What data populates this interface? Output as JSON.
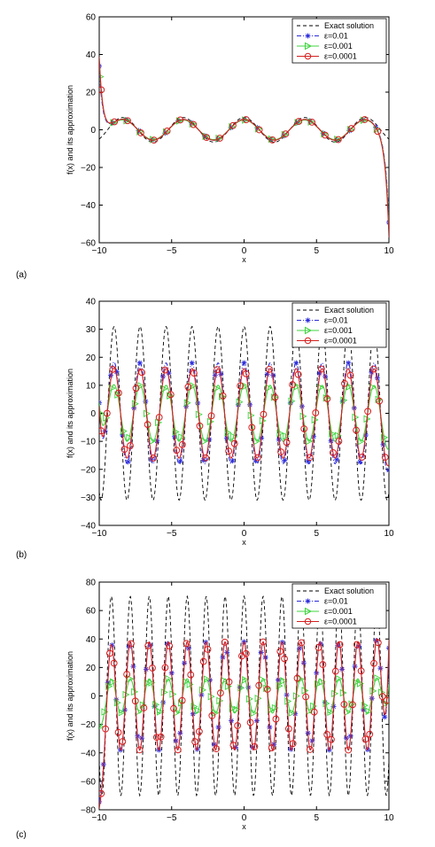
{
  "panel_labels": [
    "(a)",
    "(b)",
    "(c)"
  ],
  "legend": {
    "exact": "Exact solution",
    "eps1": "ε=0.01",
    "eps2": "ε=0.001",
    "eps3": "ε=0.0001"
  },
  "colors": {
    "exact": "#000000",
    "eps1": "#2b2bdc",
    "eps2": "#3fd43f",
    "eps3": "#d42020",
    "marker_outline_eps3": "#d42020",
    "marker_fill_eps3": "#e0a030"
  },
  "chart_data": [
    {
      "type": "line",
      "panel": "(a)",
      "xlabel": "x",
      "ylabel": "f(x) and its approximation",
      "xlim": [
        -10,
        10
      ],
      "ylim": [
        -60,
        60
      ],
      "xticks": [
        -10,
        -5,
        0,
        5,
        10
      ],
      "yticks": [
        -60,
        -40,
        -20,
        0,
        20,
        40,
        60
      ],
      "grid": false,
      "legend_position": "top-right",
      "series": [
        {
          "name": "Exact solution",
          "style": "dashed",
          "amplitude": 6.5,
          "frequency": 1.5,
          "edge_peaks": {
            "left": 0,
            "right": 0
          }
        },
        {
          "name": "ε=0.01",
          "style": "dash-dot",
          "marker": "asterisk",
          "amplitude": 5.5,
          "frequency": 1.5,
          "edge_peaks": {
            "left": 38,
            "right": -45
          }
        },
        {
          "name": "ε=0.001",
          "style": "solid",
          "marker": "triangle-right",
          "amplitude": 5.2,
          "frequency": 1.5,
          "edge_peaks": {
            "left": 42,
            "right": -50
          }
        },
        {
          "name": "ε=0.0001",
          "style": "solid",
          "marker": "circle",
          "amplitude": 5.5,
          "frequency": 1.5,
          "edge_peaks": {
            "left": 43,
            "right": -53
          }
        }
      ]
    },
    {
      "type": "line",
      "panel": "(b)",
      "xlabel": "x",
      "ylabel": "f(x) and its approximation",
      "xlim": [
        -10,
        10
      ],
      "ylim": [
        -40,
        40
      ],
      "xticks": [
        -10,
        -5,
        0,
        5,
        10
      ],
      "yticks": [
        -40,
        -30,
        -20,
        -10,
        0,
        10,
        20,
        30,
        40
      ],
      "grid": false,
      "legend_position": "top-right",
      "series": [
        {
          "name": "Exact solution",
          "style": "dashed",
          "amplitude": 31,
          "frequency": 3.5,
          "edge_peaks": {
            "left": 0,
            "right": 0
          }
        },
        {
          "name": "ε=0.01",
          "style": "dash-dot",
          "marker": "asterisk",
          "amplitude": 18,
          "frequency": 3.5,
          "edge_peaks": {
            "left": 20,
            "right": -4
          }
        },
        {
          "name": "ε=0.001",
          "style": "solid",
          "marker": "triangle-right",
          "amplitude": 10,
          "frequency": 3.5,
          "edge_peaks": {
            "left": 13,
            "right": -4
          }
        },
        {
          "name": "ε=0.0001",
          "style": "solid",
          "marker": "circle",
          "amplitude": 16,
          "frequency": 3.5,
          "edge_peaks": {
            "left": 17,
            "right": -4
          }
        }
      ]
    },
    {
      "type": "line",
      "panel": "(c)",
      "xlabel": "x",
      "ylabel": "f(x) and its approximation",
      "xlim": [
        -10,
        10
      ],
      "ylim": [
        -80,
        80
      ],
      "xticks": [
        -10,
        -5,
        0,
        5,
        10
      ],
      "yticks": [
        -80,
        -60,
        -40,
        -20,
        0,
        20,
        40,
        60,
        80
      ],
      "grid": false,
      "legend_position": "top-right",
      "series": [
        {
          "name": "Exact solution",
          "style": "dashed",
          "amplitude": 70,
          "frequency": 4.8,
          "edge_peaks": {
            "left": 0,
            "right": 0
          }
        },
        {
          "name": "ε=0.01",
          "style": "dash-dot",
          "marker": "asterisk",
          "amplitude": 38,
          "frequency": 4.8,
          "edge_peaks": {
            "left": -50,
            "right": 58
          }
        },
        {
          "name": "ε=0.001",
          "style": "solid",
          "marker": "triangle-right",
          "amplitude": 12,
          "frequency": 4.8,
          "edge_peaks": {
            "left": -15,
            "right": 16
          }
        },
        {
          "name": "ε=0.0001",
          "style": "solid",
          "marker": "circle",
          "amplitude": 38,
          "frequency": 4.8,
          "edge_peaks": {
            "left": -55,
            "right": 64
          }
        }
      ]
    }
  ]
}
